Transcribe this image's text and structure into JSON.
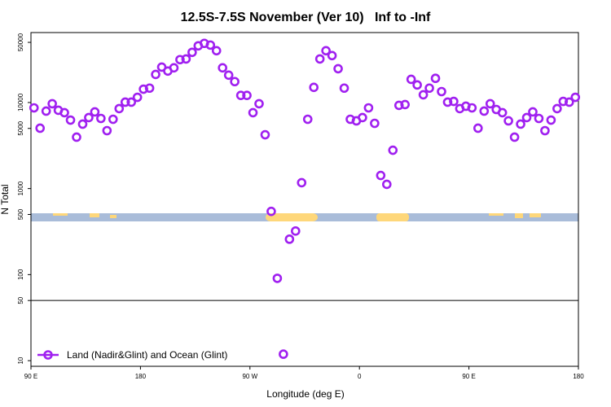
{
  "chart_data": {
    "type": "scatter",
    "title": "12.5S-7.5S November (Ver 10)   Inf to -Inf",
    "x_label": "Longitude (deg E)",
    "y_label": "N Total",
    "log_y": true,
    "legend_position": "bottom-left",
    "reference_line": 50,
    "xlim": [
      90,
      540
    ],
    "ylim": [
      8.6,
      65000
    ],
    "xticks": [
      {
        "value": 90,
        "label": "90 E"
      },
      180,
      {
        "value": 270,
        "label": "90 W"
      },
      {
        "value": 360,
        "label": "0"
      },
      {
        "value": 450,
        "label": "90 E"
      },
      {
        "value": 540,
        "label": "180"
      }
    ],
    "yticks": [
      10,
      50,
      100,
      500,
      1000,
      5000,
      10000,
      50000
    ],
    "series": [
      {
        "name": "Land (Nadir&Glint) and Ocean (Glint)",
        "color": "#a020f0",
        "x": [
          92.5,
          97.5,
          102.5,
          107.5,
          112.5,
          117.5,
          122.5,
          127.5,
          132.5,
          137.5,
          142.5,
          147.5,
          152.5,
          157.5,
          162.5,
          167.5,
          172.5,
          177.5,
          182.5,
          187.5,
          192.5,
          197.5,
          202.5,
          207.5,
          212.5,
          217.5,
          222.5,
          227.5,
          232.5,
          237.5,
          242.5,
          247.5,
          252.5,
          257.5,
          262.5,
          267.5,
          272.5,
          277.5,
          282.5,
          287.5,
          292.5,
          297.5,
          302.5,
          307.5,
          312.5,
          317.5,
          322.5,
          327.5,
          332.5,
          337.5,
          342.5,
          347.5,
          352.5,
          357.5,
          362.5,
          367.5,
          372.5,
          377.5,
          382.5,
          387.5,
          392.5,
          397.5,
          402.5,
          407.5,
          412.5,
          417.5,
          422.5,
          427.5,
          432.5,
          437.5,
          442.5,
          447.5,
          452.5,
          457.5,
          462.5,
          467.5,
          472.5,
          477.5,
          482.5,
          487.5,
          492.5,
          497.5,
          502.5,
          507.5,
          512.5,
          517.5,
          522.5,
          527.5,
          532.5,
          537.5
        ],
        "values": [
          8670,
          5030,
          7950,
          9680,
          8130,
          7620,
          6250,
          3960,
          5610,
          6680,
          7780,
          6530,
          4710,
          6390,
          8490,
          10100,
          10100,
          11500,
          14300,
          14700,
          21200,
          25800,
          23200,
          25300,
          31500,
          32100,
          38300,
          45600,
          48700,
          46500,
          40000,
          25300,
          20800,
          17500,
          12100,
          12100,
          7620,
          9680,
          4220,
          543,
          90.6,
          11.9,
          258,
          321,
          1170,
          6390,
          15000,
          32100,
          40000,
          35100,
          24700,
          14700,
          6390,
          6120,
          6680,
          8670,
          5730,
          1420,
          1120,
          2790,
          9270,
          9470,
          18600,
          16000,
          12300,
          14700,
          19100,
          13400,
          10100,
          10300,
          8490,
          9060,
          8670,
          5030,
          7950,
          9680,
          8300,
          7620,
          6120,
          3960,
          5610,
          6680,
          7780,
          6530,
          4710,
          6250,
          8490,
          10300,
          10100,
          11500
        ]
      }
    ]
  }
}
